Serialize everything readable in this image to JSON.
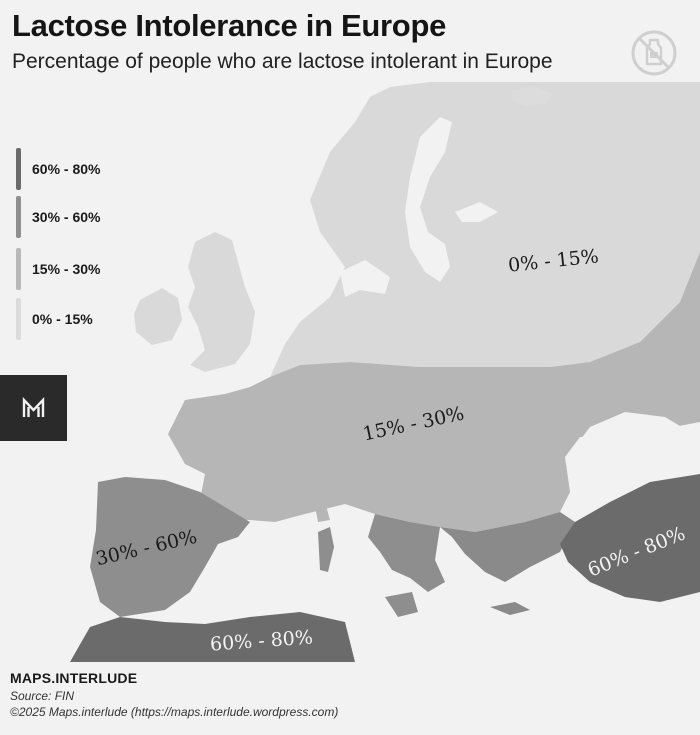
{
  "header": {
    "title": "Lactose Intolerance in Europe",
    "subtitle": "Percentage of people who are lactose intolerant in Europe",
    "icon": "no-milk-icon"
  },
  "legend": {
    "items": [
      {
        "label": "60% - 80%",
        "color": "#6b6b6b"
      },
      {
        "label": "30% - 60%",
        "color": "#8f8f8f"
      },
      {
        "label": "15% - 30%",
        "color": "#b9b9b9"
      },
      {
        "label": "0% - 15%",
        "color": "#dbdbdb"
      }
    ]
  },
  "map": {
    "regions": [
      {
        "label": "0% - 15%",
        "color": "#d9d9d9",
        "label_color": "#1a1a1a"
      },
      {
        "label": "15% - 30%",
        "color": "#b6b6b6",
        "label_color": "#1a1a1a"
      },
      {
        "label": "30% - 60%",
        "color": "#8e8e8e",
        "label_color": "#1a1a1a"
      },
      {
        "label": "60% - 80%",
        "color": "#6b6b6b",
        "label_color": "#f4f4f4"
      },
      {
        "label": "60% - 80%",
        "color": "#6b6b6b",
        "label_color": "#f4f4f4"
      }
    ],
    "sea_color": "#f2f2f2"
  },
  "brand_icon": "maps-interlude-logo-icon",
  "footer": {
    "brand": "MAPS.INTERLUDE",
    "source": "Source: FIN",
    "copyright": "©2025 Maps.interlude (https://maps.interlude.wordpress.com)"
  }
}
